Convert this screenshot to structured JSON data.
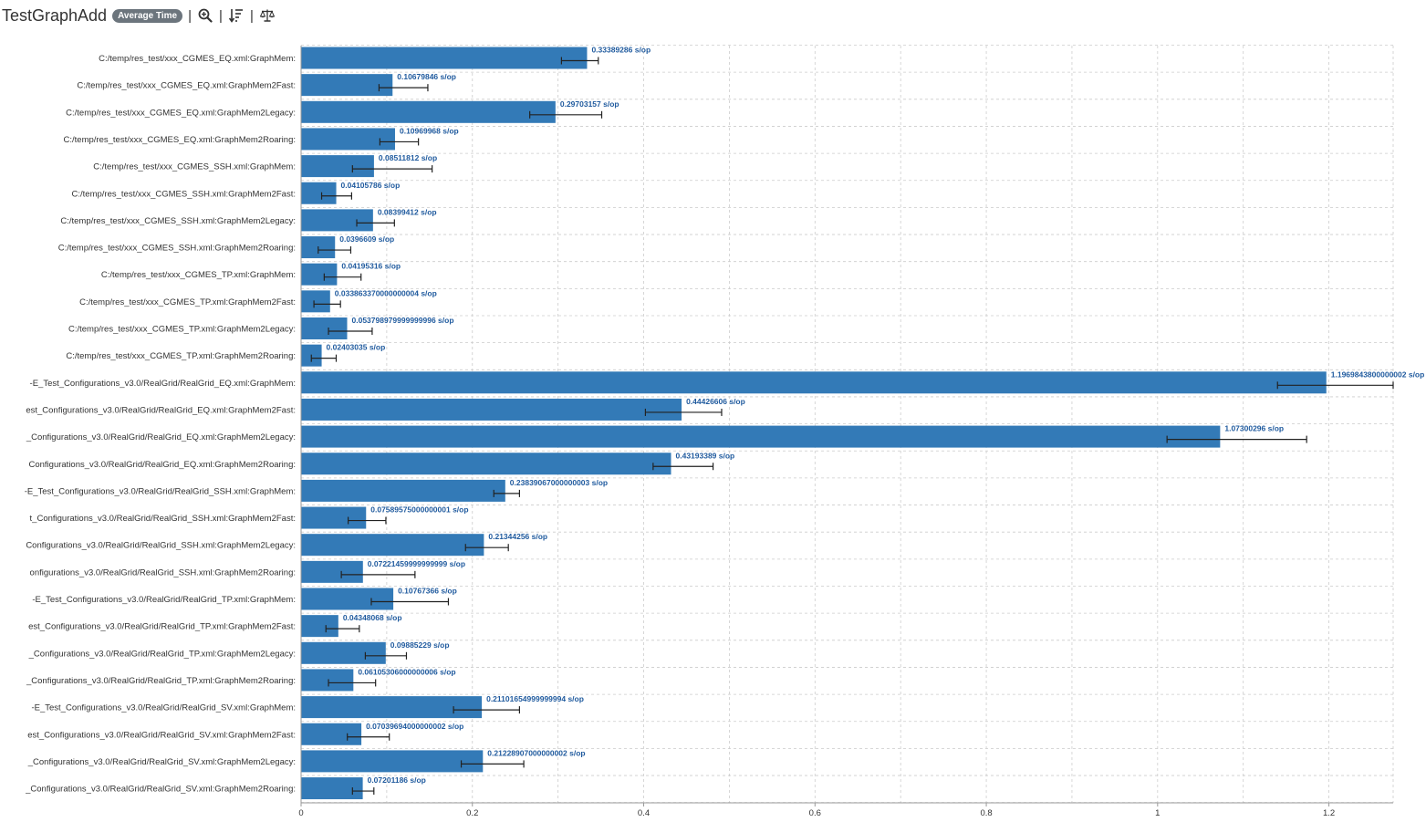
{
  "header": {
    "title": "TestGraphAdd",
    "mode_badge": "Average Time",
    "separator": "|",
    "tools": [
      {
        "name": "zoom-icon"
      },
      {
        "name": "sort-icon"
      },
      {
        "name": "balance-icon"
      }
    ]
  },
  "colors": {
    "bar": "#337ab7",
    "error_bar": "#222222",
    "grid": "#cccccc",
    "value_label": "#1f5a9e"
  },
  "chart_data": {
    "type": "bar",
    "orientation": "horizontal",
    "unit": "s/op",
    "xlim": [
      0,
      1.275
    ],
    "x_ticks": [
      0,
      0.2,
      0.4,
      0.6,
      0.8,
      1,
      1.2
    ],
    "x_tick_labels": [
      "0",
      "0.2",
      "0.4",
      "0.6",
      "0.8",
      "1",
      "1.2"
    ],
    "grid": true,
    "categories": [
      "C:/temp/res_test/xxx_CGMES_EQ.xml:GraphMem:",
      "C:/temp/res_test/xxx_CGMES_EQ.xml:GraphMem2Fast:",
      "C:/temp/res_test/xxx_CGMES_EQ.xml:GraphMem2Legacy:",
      "C:/temp/res_test/xxx_CGMES_EQ.xml:GraphMem2Roaring:",
      "C:/temp/res_test/xxx_CGMES_SSH.xml:GraphMem:",
      "C:/temp/res_test/xxx_CGMES_SSH.xml:GraphMem2Fast:",
      "C:/temp/res_test/xxx_CGMES_SSH.xml:GraphMem2Legacy:",
      "C:/temp/res_test/xxx_CGMES_SSH.xml:GraphMem2Roaring:",
      "C:/temp/res_test/xxx_CGMES_TP.xml:GraphMem:",
      "C:/temp/res_test/xxx_CGMES_TP.xml:GraphMem2Fast:",
      "C:/temp/res_test/xxx_CGMES_TP.xml:GraphMem2Legacy:",
      "C:/temp/res_test/xxx_CGMES_TP.xml:GraphMem2Roaring:",
      "-E_Test_Configurations_v3.0/RealGrid/RealGrid_EQ.xml:GraphMem:",
      "est_Configurations_v3.0/RealGrid/RealGrid_EQ.xml:GraphMem2Fast:",
      "_Configurations_v3.0/RealGrid/RealGrid_EQ.xml:GraphMem2Legacy:",
      "Configurations_v3.0/RealGrid/RealGrid_EQ.xml:GraphMem2Roaring:",
      "-E_Test_Configurations_v3.0/RealGrid/RealGrid_SSH.xml:GraphMem:",
      "t_Configurations_v3.0/RealGrid/RealGrid_SSH.xml:GraphMem2Fast:",
      "Configurations_v3.0/RealGrid/RealGrid_SSH.xml:GraphMem2Legacy:",
      "onfigurations_v3.0/RealGrid/RealGrid_SSH.xml:GraphMem2Roaring:",
      "-E_Test_Configurations_v3.0/RealGrid/RealGrid_TP.xml:GraphMem:",
      "est_Configurations_v3.0/RealGrid/RealGrid_TP.xml:GraphMem2Fast:",
      "_Configurations_v3.0/RealGrid/RealGrid_TP.xml:GraphMem2Legacy:",
      "_Configurations_v3.0/RealGrid/RealGrid_TP.xml:GraphMem2Roaring:",
      "-E_Test_Configurations_v3.0/RealGrid/RealGrid_SV.xml:GraphMem:",
      "est_Configurations_v3.0/RealGrid/RealGrid_SV.xml:GraphMem2Fast:",
      "_Configurations_v3.0/RealGrid/RealGrid_SV.xml:GraphMem2Legacy:",
      "_Configurations_v3.0/RealGrid/RealGrid_SV.xml:GraphMem2Roaring:"
    ],
    "values": [
      0.33389286,
      0.10679846,
      0.29703157,
      0.10969968,
      0.08511812,
      0.04105786,
      0.08399412,
      0.0396609,
      0.04195316,
      0.033863370000000004,
      0.053798979999999996,
      0.02403035,
      1.1969843800000002,
      0.44426606,
      1.07300296,
      0.43193389,
      0.23839067000000003,
      0.07589575000000001,
      0.21344256,
      0.07221459999999999,
      0.10767366,
      0.04348068,
      0.09885229,
      0.06105306000000006,
      0.21101654999999994,
      0.07039694000000002,
      0.21228907000000002,
      0.07201186
    ],
    "value_labels": [
      "0.33389286 s/op",
      "0.10679846 s/op",
      "0.29703157 s/op",
      "0.10969968 s/op",
      "0.08511812 s/op",
      "0.04105786 s/op",
      "0.08399412 s/op",
      "0.0396609 s/op",
      "0.04195316 s/op",
      "0.033863370000000004 s/op",
      "0.053798979999999996 s/op",
      "0.02403035 s/op",
      "1.1969843800000002 s/op",
      "0.44426606 s/op",
      "1.07300296 s/op",
      "0.43193389 s/op",
      "0.23839067000000003 s/op",
      "0.07589575000000001 s/op",
      "0.21344256 s/op",
      "0.07221459999999999 s/op",
      "0.10767366 s/op",
      "0.04348068 s/op",
      "0.09885229 s/op",
      "0.06105306000000006 s/op",
      "0.21101654999999994 s/op",
      "0.07039694000000002 s/op",
      "0.21228907000000002 s/op",
      "0.07201186 s/op"
    ],
    "error_low": [
      0.304,
      0.091,
      0.267,
      0.092,
      0.06,
      0.024,
      0.065,
      0.02,
      0.027,
      0.015,
      0.032,
      0.012,
      1.14,
      0.402,
      1.011,
      0.411,
      0.225,
      0.055,
      0.192,
      0.047,
      0.082,
      0.029,
      0.075,
      0.032,
      0.178,
      0.054,
      0.187,
      0.06
    ],
    "error_high": [
      0.347,
      0.148,
      0.351,
      0.137,
      0.153,
      0.059,
      0.109,
      0.058,
      0.07,
      0.046,
      0.083,
      0.041,
      1.275,
      0.491,
      1.174,
      0.481,
      0.255,
      0.099,
      0.242,
      0.133,
      0.172,
      0.068,
      0.123,
      0.087,
      0.255,
      0.103,
      0.26,
      0.085
    ]
  }
}
